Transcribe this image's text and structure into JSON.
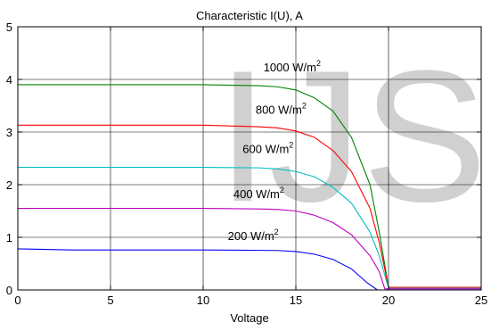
{
  "chart_data": {
    "type": "line",
    "title": "Characteristic I(U), A",
    "xlabel": "Voltage",
    "ylabel": "",
    "xlim": [
      0,
      25
    ],
    "ylim": [
      0,
      5
    ],
    "xticks": [
      "0",
      "5",
      "10",
      "15",
      "20",
      "25"
    ],
    "yticks": [
      "0",
      "1",
      "2",
      "3",
      "4",
      "5"
    ],
    "grid": true,
    "series": [
      {
        "name": "1000 W/m2",
        "label_text": "1000 W/m",
        "label_sup": "2",
        "color": "#008000",
        "points": [
          [
            0,
            3.9
          ],
          [
            5,
            3.9
          ],
          [
            10,
            3.9
          ],
          [
            13,
            3.88
          ],
          [
            14,
            3.86
          ],
          [
            15,
            3.8
          ],
          [
            16,
            3.65
          ],
          [
            17,
            3.4
          ],
          [
            18,
            2.9
          ],
          [
            19,
            2.0
          ],
          [
            19.5,
            1.1
          ],
          [
            20,
            0.05
          ],
          [
            25,
            0.05
          ]
        ]
      },
      {
        "name": "800 W/m2",
        "label_text": "800 W/m",
        "label_sup": "2",
        "color": "#ff0000",
        "points": [
          [
            0,
            3.13
          ],
          [
            5,
            3.13
          ],
          [
            10,
            3.13
          ],
          [
            13,
            3.1
          ],
          [
            14,
            3.08
          ],
          [
            15,
            3.02
          ],
          [
            16,
            2.9
          ],
          [
            17,
            2.65
          ],
          [
            18,
            2.25
          ],
          [
            19,
            1.55
          ],
          [
            19.5,
            0.9
          ],
          [
            20,
            0.05
          ],
          [
            25,
            0.05
          ]
        ]
      },
      {
        "name": "600 W/m2",
        "label_text": "600 W/m",
        "label_sup": "2",
        "color": "#00bfbf",
        "points": [
          [
            0,
            2.33
          ],
          [
            5,
            2.33
          ],
          [
            10,
            2.33
          ],
          [
            13,
            2.32
          ],
          [
            14,
            2.3
          ],
          [
            15,
            2.25
          ],
          [
            16,
            2.15
          ],
          [
            17,
            1.95
          ],
          [
            18,
            1.65
          ],
          [
            19,
            1.1
          ],
          [
            19.5,
            0.65
          ],
          [
            20,
            0.03
          ],
          [
            25,
            0.03
          ]
        ]
      },
      {
        "name": "400 W/m2",
        "label_text": "400 W/m",
        "label_sup": "2",
        "color": "#bf00bf",
        "points": [
          [
            0,
            1.55
          ],
          [
            5,
            1.55
          ],
          [
            10,
            1.55
          ],
          [
            13,
            1.54
          ],
          [
            14,
            1.53
          ],
          [
            15,
            1.5
          ],
          [
            16,
            1.42
          ],
          [
            17,
            1.28
          ],
          [
            18,
            1.05
          ],
          [
            19,
            0.65
          ],
          [
            19.5,
            0.35
          ],
          [
            19.8,
            0.02
          ],
          [
            25,
            0.02
          ]
        ]
      },
      {
        "name": "200 W/m2",
        "label_text": "200 W/m",
        "label_sup": "2",
        "color": "#0000ff",
        "points": [
          [
            0,
            0.78
          ],
          [
            3,
            0.76
          ],
          [
            5,
            0.76
          ],
          [
            10,
            0.76
          ],
          [
            14,
            0.75
          ],
          [
            15,
            0.73
          ],
          [
            16,
            0.68
          ],
          [
            17,
            0.58
          ],
          [
            18,
            0.4
          ],
          [
            18.8,
            0.15
          ],
          [
            19.4,
            0.0
          ],
          [
            25,
            0.0
          ]
        ]
      }
    ],
    "annotations": [
      {
        "series": 0,
        "at": [
          14.8,
          4.15
        ]
      },
      {
        "series": 1,
        "at": [
          14.2,
          3.35
        ]
      },
      {
        "series": 2,
        "at": [
          13.5,
          2.6
        ]
      },
      {
        "series": 3,
        "at": [
          13.0,
          1.75
        ]
      },
      {
        "series": 4,
        "at": [
          12.7,
          0.95
        ]
      }
    ],
    "watermark": "IJS"
  }
}
